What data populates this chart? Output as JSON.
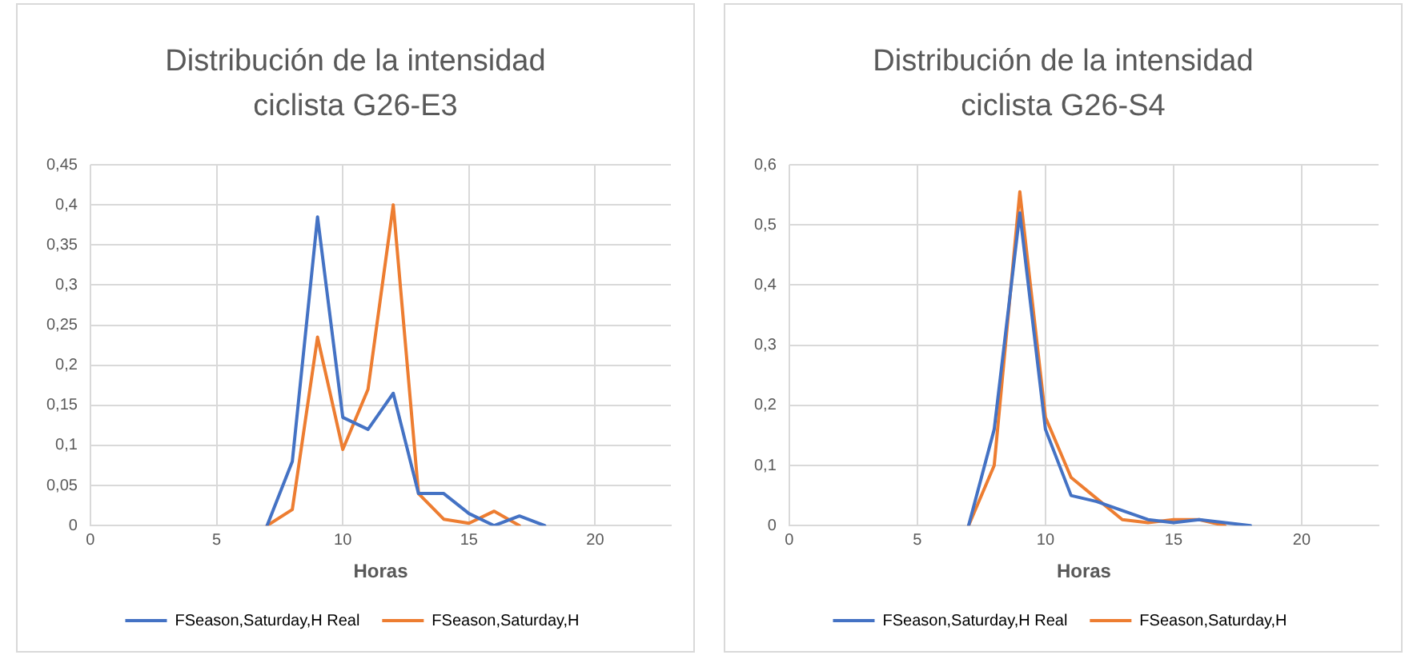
{
  "chart_data": [
    {
      "type": "line",
      "title": "Distribución de la intensidad ciclista G26-E3",
      "xlabel": "Horas",
      "xlim": [
        0,
        23
      ],
      "xticks": [
        0,
        5,
        10,
        15,
        20
      ],
      "ylim": [
        0,
        0.45
      ],
      "yticks": [
        {
          "value": 0,
          "label": "0"
        },
        {
          "value": 0.05,
          "label": "0,05"
        },
        {
          "value": 0.1,
          "label": "0,1"
        },
        {
          "value": 0.15,
          "label": "0,15"
        },
        {
          "value": 0.2,
          "label": "0,2"
        },
        {
          "value": 0.25,
          "label": "0,25"
        },
        {
          "value": 0.3,
          "label": "0,3"
        },
        {
          "value": 0.35,
          "label": "0,35"
        },
        {
          "value": 0.4,
          "label": "0,4"
        },
        {
          "value": 0.45,
          "label": "0,45"
        }
      ],
      "grid": true,
      "legend": "bottom",
      "marker": "none",
      "line_style": "solid",
      "series": [
        {
          "name": "FSeason,Saturday,H Real",
          "color": "#4472c4",
          "x": [
            7,
            8,
            9,
            10,
            11,
            12,
            13,
            14,
            15,
            16,
            17,
            18
          ],
          "values": [
            0,
            0.08,
            0.385,
            0.135,
            0.12,
            0.165,
            0.04,
            0.04,
            0.015,
            0,
            0.012,
            0
          ]
        },
        {
          "name": "FSeason,Saturday,H",
          "color": "#ed7d31",
          "x": [
            7,
            8,
            9,
            10,
            11,
            12,
            13,
            14,
            15,
            16,
            17
          ],
          "values": [
            0,
            0.02,
            0.235,
            0.095,
            0.17,
            0.4,
            0.04,
            0.008,
            0.003,
            0.018,
            0
          ]
        }
      ]
    },
    {
      "type": "line",
      "title": "Distribución de la intensidad ciclista G26-S4",
      "xlabel": "Horas",
      "xlim": [
        0,
        23
      ],
      "xticks": [
        0,
        5,
        10,
        15,
        20
      ],
      "ylim": [
        0,
        0.6
      ],
      "yticks": [
        {
          "value": 0,
          "label": "0"
        },
        {
          "value": 0.1,
          "label": "0,1"
        },
        {
          "value": 0.2,
          "label": "0,2"
        },
        {
          "value": 0.3,
          "label": "0,3"
        },
        {
          "value": 0.4,
          "label": "0,4"
        },
        {
          "value": 0.5,
          "label": "0,5"
        },
        {
          "value": 0.6,
          "label": "0,6"
        }
      ],
      "grid": true,
      "legend": "bottom",
      "marker": "none",
      "line_style": "solid",
      "series": [
        {
          "name": "FSeason,Saturday,H Real",
          "color": "#4472c4",
          "x": [
            7,
            8,
            9,
            10,
            11,
            12,
            13,
            14,
            15,
            16,
            17,
            18
          ],
          "values": [
            0,
            0.16,
            0.52,
            0.16,
            0.05,
            0.04,
            0.025,
            0.01,
            0.005,
            0.01,
            0.005,
            0
          ]
        },
        {
          "name": "FSeason,Saturday,H",
          "color": "#ed7d31",
          "x": [
            7,
            8,
            9,
            10,
            11,
            12,
            13,
            14,
            15,
            16,
            17
          ],
          "values": [
            0,
            0.1,
            0.555,
            0.18,
            0.08,
            0.045,
            0.01,
            0.005,
            0.01,
            0.01,
            0
          ]
        }
      ]
    }
  ]
}
